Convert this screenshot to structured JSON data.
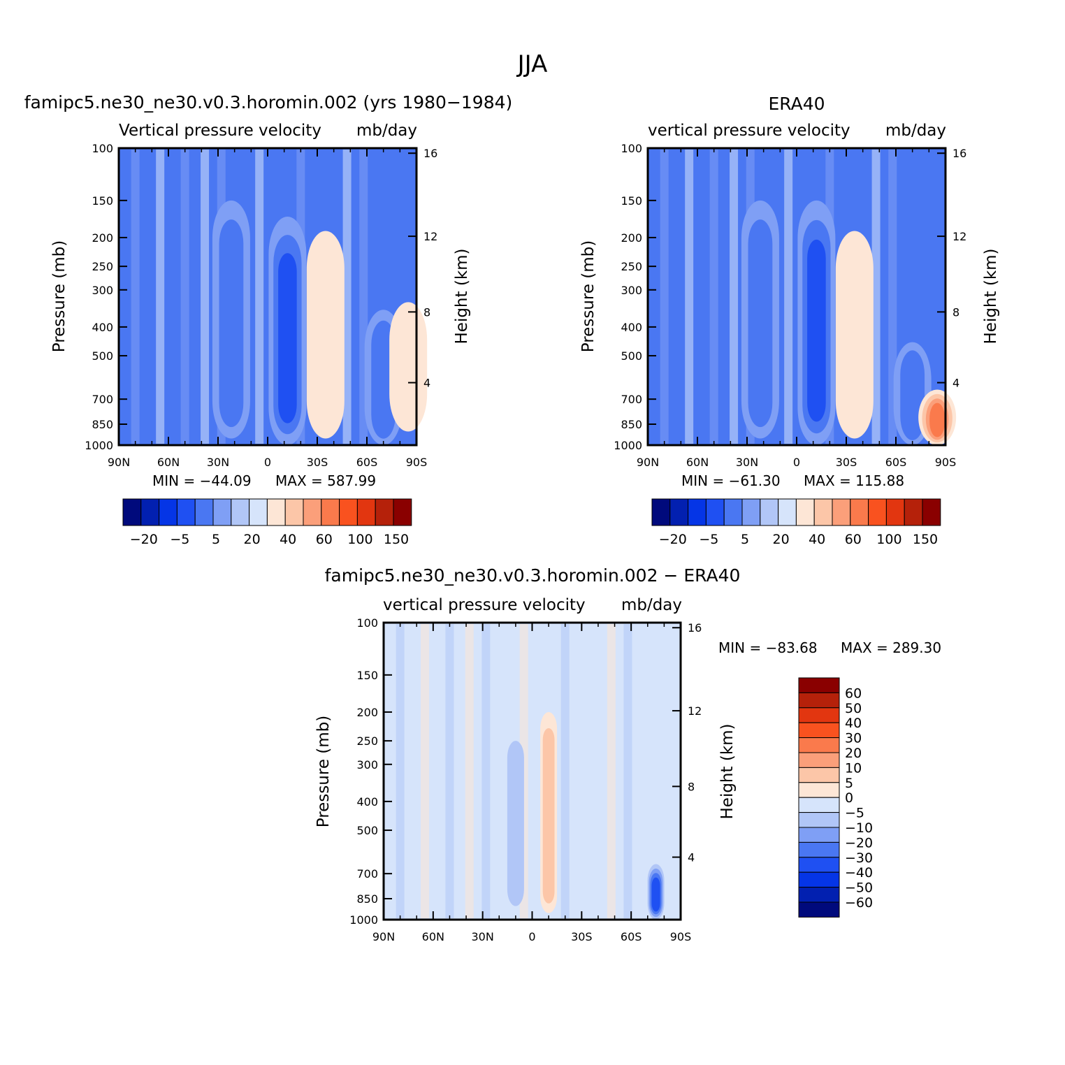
{
  "title": "JJA",
  "colors": {
    "blues": [
      "#000a7c",
      "#0220b0",
      "#0535e6",
      "#1f50f2",
      "#4a77f2",
      "#7f9ff5",
      "#b1c6f7",
      "#d6e4fb"
    ],
    "reds": [
      "#fde6d6",
      "#fcc6a8",
      "#fb9f7a",
      "#fa7a4c",
      "#f9521f",
      "#e23610",
      "#b5210a",
      "#8a0000"
    ],
    "diff_palette": [
      "#000a7c",
      "#0220b0",
      "#0535e6",
      "#1f50f2",
      "#4a77f2",
      "#7f9ff5",
      "#b1c6f7",
      "#d6e4fb",
      "#fde6d6",
      "#fcc6a8",
      "#fb9f7a",
      "#fa7a4c",
      "#f9521f",
      "#e23610",
      "#b5210a",
      "#8a0000"
    ]
  },
  "chart_data": [
    {
      "type": "heatmap",
      "id": "model",
      "title": "famipc5.ne30_ne30.v0.3.horomin.002 (yrs 1980−1984)",
      "subtitle": "Vertical pressure velocity",
      "units": "mb/day",
      "ylabel": "Pressure (mb)",
      "y2label": "Height (km)",
      "x_ticks": [
        "90N",
        "60N",
        "30N",
        "0",
        "30S",
        "60S",
        "90S"
      ],
      "y_ticks": [
        "100",
        "150",
        "200",
        "250",
        "300",
        "400",
        "500",
        "700",
        "850",
        "1000"
      ],
      "y2_ticks": [
        "16",
        "12",
        "8",
        "4"
      ],
      "xlim": [
        90,
        -90
      ],
      "ylim": [
        1000,
        100
      ],
      "min_label": "MIN = −44.09",
      "max_label": "MAX = 587.99",
      "min": -44.09,
      "max": 587.99,
      "colorbar_labels": [
        "−20",
        "−5",
        "5",
        "20",
        "40",
        "60",
        "100",
        "150"
      ],
      "features": [
        {
          "lat": -12,
          "p_top": 170,
          "p_bottom": 1000,
          "level": -3
        },
        {
          "lat": 22,
          "p_top": 150,
          "p_bottom": 950,
          "level": -2
        },
        {
          "lat": -35,
          "p_top": 190,
          "p_bottom": 950,
          "level": 1
        },
        {
          "lat": -70,
          "p_top": 350,
          "p_bottom": 1000,
          "level": -2
        },
        {
          "lat": -85,
          "p_top": 330,
          "p_bottom": 900,
          "level": 1
        }
      ]
    },
    {
      "type": "heatmap",
      "id": "obs",
      "title": "ERA40",
      "subtitle": "vertical pressure velocity",
      "units": "mb/day",
      "ylabel": "Pressure (mb)",
      "y2label": "Height (km)",
      "x_ticks": [
        "90N",
        "60N",
        "30N",
        "0",
        "30S",
        "60S",
        "90S"
      ],
      "y_ticks": [
        "100",
        "150",
        "200",
        "250",
        "300",
        "400",
        "500",
        "700",
        "850",
        "1000"
      ],
      "y2_ticks": [
        "16",
        "12",
        "8",
        "4"
      ],
      "xlim": [
        90,
        -90
      ],
      "ylim": [
        1000,
        100
      ],
      "min_label": "MIN = −61.30",
      "max_label": "MAX = 115.88",
      "min": -61.3,
      "max": 115.88,
      "colorbar_labels": [
        "−20",
        "−5",
        "5",
        "20",
        "40",
        "60",
        "100",
        "150"
      ],
      "features": [
        {
          "lat": -12,
          "p_top": 150,
          "p_bottom": 1000,
          "level": -3
        },
        {
          "lat": 22,
          "p_top": 150,
          "p_bottom": 950,
          "level": -2
        },
        {
          "lat": -35,
          "p_top": 190,
          "p_bottom": 950,
          "level": 1
        },
        {
          "lat": -70,
          "p_top": 450,
          "p_bottom": 1000,
          "level": -2
        },
        {
          "lat": -85,
          "p_top": 650,
          "p_bottom": 1000,
          "level": 4
        }
      ]
    },
    {
      "type": "heatmap",
      "id": "diff",
      "title": "famipc5.ne30_ne30.v0.3.horomin.002 − ERA40",
      "subtitle": "vertical pressure velocity",
      "units": "mb/day",
      "ylabel": "Pressure (mb)",
      "y2label": "Height (km)",
      "x_ticks": [
        "90N",
        "60N",
        "30N",
        "0",
        "30S",
        "60S",
        "90S"
      ],
      "y_ticks": [
        "100",
        "150",
        "200",
        "250",
        "300",
        "400",
        "500",
        "700",
        "850",
        "1000"
      ],
      "y2_ticks": [
        "16",
        "12",
        "8",
        "4"
      ],
      "xlim": [
        90,
        -90
      ],
      "ylim": [
        1000,
        100
      ],
      "min_label": "MIN = −83.68",
      "max_label": "MAX = 289.30",
      "min": -83.68,
      "max": 289.3,
      "colorbar_labels": [
        "60",
        "50",
        "40",
        "30",
        "20",
        "10",
        "5",
        "0",
        "−5",
        "−10",
        "−20",
        "−30",
        "−40",
        "−50",
        "−60"
      ],
      "features": [
        {
          "lat": -10,
          "p_top": 200,
          "p_bottom": 950,
          "level": 2
        },
        {
          "lat": -75,
          "p_top": 650,
          "p_bottom": 1000,
          "level": -4
        },
        {
          "lat": 10,
          "p_top": 250,
          "p_bottom": 900,
          "level": -1
        }
      ]
    }
  ]
}
